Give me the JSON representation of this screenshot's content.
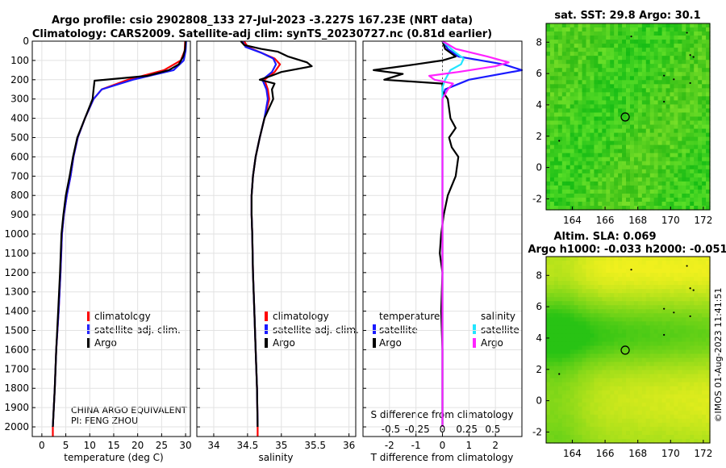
{
  "header": {
    "title_line1": "Argo profile: csio 2902808_133 27-Jul-2023 -3.227S 167.23E (NRT data)",
    "title_line2": "Climatology: CARS2009. Satellite-adj clim: synTS_20230727.nc (0.81d earlier)"
  },
  "colors": {
    "climatology": "#ff0000",
    "satellite_adj": "#1a1aff",
    "argo": "#000000",
    "satellite_s": "#22e5ff",
    "argo_s": "#ff22ff"
  },
  "chart_data": [
    {
      "type": "line",
      "name": "temperature",
      "xlabel": "temperature (deg C)",
      "xlim": [
        -2,
        31
      ],
      "ylim": [
        2050,
        0
      ],
      "xticks": [
        "0",
        "5",
        "10",
        "15",
        "20",
        "25",
        "30"
      ],
      "yticks": [
        "0",
        "100",
        "200",
        "300",
        "400",
        "500",
        "600",
        "700",
        "800",
        "900",
        "1000",
        "1100",
        "1200",
        "1300",
        "1400",
        "1500",
        "1600",
        "1700",
        "1800",
        "1900",
        "2000"
      ],
      "legend": [
        "climatology",
        "satellite-adj. clim.",
        "Argo"
      ],
      "annotation_line1": "CHINA ARGO EQUIVALENT",
      "annotation_line2": "PI: FENG ZHOU",
      "series": [
        {
          "name": "climatology",
          "color": "#ff0000",
          "points": [
            [
              29.9,
              0
            ],
            [
              29.8,
              50
            ],
            [
              29.0,
              100
            ],
            [
              25.5,
              150
            ],
            [
              18.0,
              200
            ],
            [
              12.5,
              250
            ],
            [
              10.8,
              300
            ],
            [
              9.0,
              400
            ],
            [
              7.5,
              500
            ],
            [
              6.6,
              600
            ],
            [
              6.0,
              700
            ],
            [
              5.2,
              800
            ],
            [
              4.6,
              900
            ],
            [
              4.2,
              1000
            ],
            [
              3.9,
              1200
            ],
            [
              3.5,
              1400
            ],
            [
              3.0,
              1600
            ],
            [
              2.7,
              1800
            ],
            [
              2.5,
              1900
            ],
            [
              2.3,
              2000
            ],
            [
              2.3,
              2050
            ]
          ]
        },
        {
          "name": "satellite-adj. clim.",
          "color": "#1a1aff",
          "points": [
            [
              30.1,
              0
            ],
            [
              30.0,
              50
            ],
            [
              29.6,
              100
            ],
            [
              27.5,
              150
            ],
            [
              19.0,
              200
            ],
            [
              12.5,
              250
            ],
            [
              10.8,
              300
            ],
            [
              9.0,
              400
            ],
            [
              7.5,
              500
            ],
            [
              6.6,
              600
            ],
            [
              6.0,
              700
            ],
            [
              5.2,
              800
            ],
            [
              4.6,
              900
            ],
            [
              4.2,
              1000
            ],
            [
              3.9,
              1200
            ],
            [
              3.5,
              1400
            ],
            [
              3.0,
              1600
            ],
            [
              2.7,
              1800
            ],
            [
              2.5,
              1900
            ],
            [
              2.3,
              2000
            ]
          ]
        },
        {
          "name": "Argo",
          "color": "#000000",
          "points": [
            [
              30.0,
              0
            ],
            [
              29.9,
              40
            ],
            [
              29.5,
              80
            ],
            [
              28.6,
              120
            ],
            [
              26.5,
              150
            ],
            [
              22.0,
              180
            ],
            [
              11.0,
              205
            ],
            [
              10.8,
              250
            ],
            [
              10.6,
              300
            ],
            [
              9.0,
              400
            ],
            [
              7.4,
              500
            ],
            [
              6.5,
              600
            ],
            [
              5.8,
              700
            ],
            [
              5.0,
              800
            ],
            [
              4.5,
              900
            ],
            [
              4.1,
              1000
            ],
            [
              3.8,
              1200
            ],
            [
              3.4,
              1400
            ],
            [
              3.0,
              1600
            ],
            [
              2.7,
              1800
            ],
            [
              2.5,
              1900
            ],
            [
              2.3,
              2000
            ]
          ]
        }
      ]
    },
    {
      "type": "line",
      "name": "salinity",
      "xlabel": "salinity",
      "xlim": [
        33.75,
        36.1
      ],
      "ylim": [
        2050,
        0
      ],
      "xticks": [
        "34",
        "34.5",
        "35",
        "35.5",
        "36"
      ],
      "legend": [
        "climatology",
        "satellite-adj. clim.",
        "Argo"
      ],
      "series": [
        {
          "name": "climatology",
          "color": "#ff0000",
          "points": [
            [
              34.45,
              0
            ],
            [
              34.5,
              30
            ],
            [
              34.7,
              60
            ],
            [
              34.9,
              90
            ],
            [
              34.98,
              120
            ],
            [
              34.9,
              160
            ],
            [
              34.75,
              200
            ],
            [
              34.8,
              250
            ],
            [
              34.82,
              300
            ],
            [
              34.75,
              400
            ],
            [
              34.68,
              500
            ],
            [
              34.62,
              600
            ],
            [
              34.58,
              700
            ],
            [
              34.56,
              800
            ],
            [
              34.56,
              900
            ],
            [
              34.57,
              1000
            ],
            [
              34.58,
              1200
            ],
            [
              34.6,
              1400
            ],
            [
              34.62,
              1600
            ],
            [
              34.64,
              1800
            ],
            [
              34.65,
              2000
            ],
            [
              34.65,
              2050
            ]
          ]
        },
        {
          "name": "satellite-adj. clim.",
          "color": "#1a1aff",
          "points": [
            [
              34.42,
              0
            ],
            [
              34.47,
              30
            ],
            [
              34.7,
              60
            ],
            [
              34.88,
              90
            ],
            [
              34.92,
              120
            ],
            [
              34.86,
              160
            ],
            [
              34.72,
              200
            ],
            [
              34.78,
              250
            ],
            [
              34.8,
              300
            ],
            [
              34.75,
              400
            ],
            [
              34.68,
              500
            ],
            [
              34.62,
              600
            ],
            [
              34.58,
              700
            ],
            [
              34.56,
              800
            ],
            [
              34.56,
              900
            ],
            [
              34.57,
              1000
            ],
            [
              34.58,
              1200
            ],
            [
              34.6,
              1400
            ],
            [
              34.62,
              1600
            ],
            [
              34.64,
              1800
            ],
            [
              34.65,
              2000
            ]
          ]
        },
        {
          "name": "Argo",
          "color": "#000000",
          "points": [
            [
              34.4,
              0
            ],
            [
              34.45,
              20
            ],
            [
              34.7,
              40
            ],
            [
              34.95,
              55
            ],
            [
              35.1,
              80
            ],
            [
              35.38,
              110
            ],
            [
              35.45,
              130
            ],
            [
              35.0,
              160
            ],
            [
              34.85,
              180
            ],
            [
              34.68,
              200
            ],
            [
              34.9,
              220
            ],
            [
              34.86,
              250
            ],
            [
              34.88,
              300
            ],
            [
              34.75,
              400
            ],
            [
              34.68,
              500
            ],
            [
              34.62,
              600
            ],
            [
              34.58,
              700
            ],
            [
              34.56,
              800
            ],
            [
              34.56,
              900
            ],
            [
              34.57,
              1000
            ],
            [
              34.58,
              1200
            ],
            [
              34.6,
              1400
            ],
            [
              34.62,
              1600
            ],
            [
              34.64,
              1800
            ],
            [
              34.65,
              2000
            ]
          ]
        }
      ]
    },
    {
      "type": "line",
      "name": "difference",
      "xlabel": "T difference from climatology",
      "xlabel_top": "S difference from climatology",
      "xlim": [
        -3,
        3
      ],
      "ylim": [
        2050,
        0
      ],
      "xticks": [
        "-2",
        "-1",
        "0",
        "1",
        "2"
      ],
      "xticks_top": [
        "-0.5",
        "-0.25",
        "0",
        "0.25",
        "0.5"
      ],
      "legend_temperature_title": "temperature",
      "legend_salinity_title": "salinity",
      "legend_temperature": [
        "satellite",
        "Argo"
      ],
      "legend_salinity": [
        "satellite",
        "Argo"
      ],
      "series": [
        {
          "name": "T satellite",
          "color": "#1a1aff",
          "points": [
            [
              0,
              0
            ],
            [
              0.2,
              40
            ],
            [
              0.6,
              80
            ],
            [
              2.3,
              120
            ],
            [
              3.0,
              150
            ],
            [
              1.0,
              200
            ],
            [
              0.1,
              250
            ],
            [
              0,
              300
            ],
            [
              0,
              500
            ],
            [
              0,
              1000
            ],
            [
              0,
              1500
            ],
            [
              0,
              2000
            ]
          ]
        },
        {
          "name": "T Argo",
          "color": "#000000",
          "points": [
            [
              0,
              0
            ],
            [
              0.1,
              40
            ],
            [
              0.5,
              80
            ],
            [
              0,
              100
            ],
            [
              -1,
              120
            ],
            [
              -2.6,
              150
            ],
            [
              -1.5,
              170
            ],
            [
              -2.2,
              200
            ],
            [
              0,
              220
            ],
            [
              0,
              260
            ],
            [
              0.2,
              300
            ],
            [
              0.3,
              400
            ],
            [
              0.5,
              450
            ],
            [
              0.25,
              500
            ],
            [
              0.35,
              550
            ],
            [
              0.6,
              600
            ],
            [
              0.5,
              700
            ],
            [
              0.2,
              800
            ],
            [
              0.05,
              900
            ],
            [
              -0.05,
              1000
            ],
            [
              -0.1,
              1100
            ],
            [
              0,
              1200
            ],
            [
              -0.05,
              1400
            ],
            [
              0,
              1600
            ],
            [
              0,
              1800
            ],
            [
              0,
              2000
            ]
          ]
        },
        {
          "name": "S satellite",
          "color": "#22e5ff",
          "points": [
            [
              0,
              0
            ],
            [
              0.25,
              30
            ],
            [
              0.5,
              60
            ],
            [
              0.8,
              90
            ],
            [
              0.7,
              120
            ],
            [
              0.3,
              150
            ],
            [
              0.1,
              200
            ],
            [
              0,
              240
            ],
            [
              0,
              300
            ],
            [
              0,
              500
            ],
            [
              0,
              1000
            ],
            [
              0,
              1500
            ],
            [
              0,
              2000
            ]
          ]
        },
        {
          "name": "S Argo",
          "color": "#ff22ff",
          "points": [
            [
              0,
              0
            ],
            [
              0.5,
              40
            ],
            [
              1.7,
              80
            ],
            [
              2.5,
              110
            ],
            [
              2.0,
              130
            ],
            [
              0.6,
              160
            ],
            [
              -0.5,
              180
            ],
            [
              -0.3,
              200
            ],
            [
              0.4,
              220
            ],
            [
              0.2,
              250
            ],
            [
              0,
              300
            ],
            [
              0,
              500
            ],
            [
              0,
              1000
            ],
            [
              0,
              1500
            ],
            [
              0,
              2000
            ]
          ]
        }
      ]
    },
    {
      "type": "heatmap",
      "name": "sst",
      "title": "sat. SST: 29.8 Argo: 30.1",
      "xlim": [
        162.4,
        172.4
      ],
      "ylim": [
        -2.7,
        9.2
      ],
      "xticks": [
        "164",
        "166",
        "168",
        "170",
        "172"
      ],
      "yticks": [
        "-2",
        "0",
        "2",
        "4",
        "6",
        "8"
      ],
      "marker": [
        167.23,
        3.227
      ]
    },
    {
      "type": "heatmap",
      "name": "sla",
      "title_line1": "Altim. SLA: 0.069",
      "title_line2": "Argo h1000: -0.033 h2000: -0.051",
      "xlim": [
        162.4,
        172.4
      ],
      "ylim": [
        -2.7,
        9.2
      ],
      "xticks": [
        "164",
        "166",
        "168",
        "170",
        "172"
      ],
      "yticks": [
        "-2",
        "0",
        "2",
        "4",
        "6",
        "8"
      ],
      "marker": [
        167.23,
        3.227
      ]
    }
  ],
  "side_label": "©IMOS 01-Aug-2023 11:41:51"
}
